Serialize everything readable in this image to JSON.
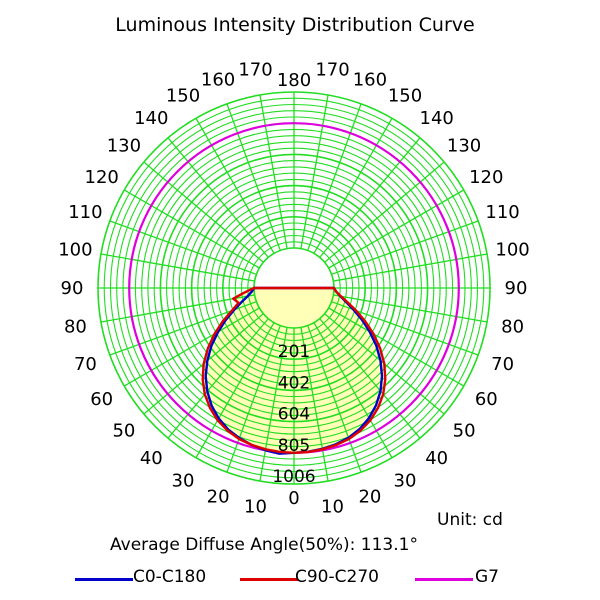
{
  "chart_data": {
    "type": "polar",
    "title": "Luminous Intensity Distribution Curve",
    "unit_label": "Unit: cd",
    "average_angle_label": "Average Diffuse Angle(50%): 113.1°",
    "angle_labels": [
      "0",
      "10",
      "20",
      "30",
      "40",
      "50",
      "60",
      "70",
      "80",
      "90",
      "100",
      "110",
      "120",
      "130",
      "140",
      "150",
      "160",
      "170",
      "180"
    ],
    "ring_labels": [
      "201",
      "402",
      "604",
      "805",
      "1006"
    ],
    "ring_values": [
      201,
      402,
      604,
      805,
      1006
    ],
    "r_max": 1006,
    "grid": true,
    "grid_color": "#22dd22",
    "fill_color": "#ffffb8",
    "legend_placement": "bottom",
    "series": [
      {
        "name": "C0-C180",
        "color": "#0000cc",
        "angles": [
          0,
          5,
          10,
          15,
          20,
          25,
          30,
          35,
          40,
          45,
          50,
          55,
          60,
          65,
          70,
          75,
          80,
          85,
          90
        ],
        "values_right": [
          805,
          802,
          795,
          785,
          770,
          745,
          710,
          665,
          610,
          545,
          470,
          390,
          305,
          225,
          150,
          90,
          45,
          15,
          0
        ],
        "values_left": [
          805,
          815,
          805,
          790,
          772,
          748,
          713,
          668,
          612,
          547,
          472,
          392,
          307,
          227,
          152,
          92,
          46,
          16,
          0
        ]
      },
      {
        "name": "C90-C270",
        "color": "#dd0000",
        "angles": [
          0,
          5,
          10,
          15,
          20,
          25,
          30,
          35,
          40,
          45,
          50,
          55,
          60,
          65,
          70,
          75,
          80,
          85,
          90
        ],
        "values_right": [
          805,
          803,
          798,
          790,
          778,
          757,
          727,
          687,
          637,
          575,
          502,
          420,
          333,
          248,
          168,
          100,
          50,
          16,
          0
        ],
        "values_left": [
          805,
          803,
          798,
          790,
          778,
          757,
          727,
          687,
          637,
          575,
          502,
          420,
          333,
          248,
          168,
          112,
          140,
          60,
          0
        ]
      },
      {
        "name": "G7",
        "color": "#dd00dd",
        "angles": [
          0,
          10,
          20,
          30,
          40,
          50,
          60,
          70,
          80,
          90,
          100,
          110,
          120,
          130,
          140,
          150,
          160,
          170,
          180
        ],
        "values": [
          805,
          805,
          805,
          805,
          805,
          805,
          805,
          805,
          805,
          805,
          805,
          805,
          805,
          805,
          805,
          805,
          805,
          805,
          805
        ]
      }
    ]
  }
}
